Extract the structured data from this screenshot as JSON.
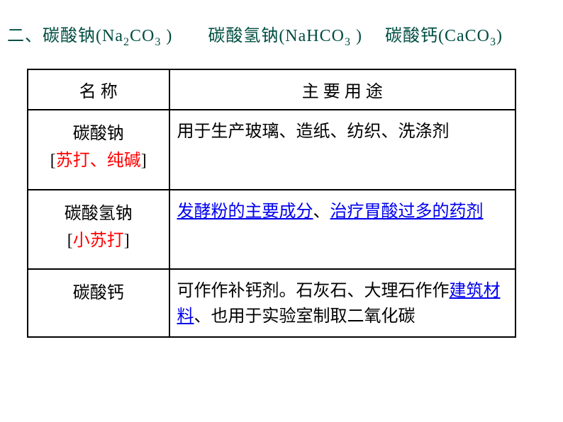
{
  "title": {
    "prefix": "二、碳酸钠(Na",
    "sub1": "2",
    "co": "CO",
    "sub2": "3",
    "sep1": " )　　碳酸氢钠(NaHCO",
    "sub3": "3",
    "sep2": " )　 碳酸钙(CaCO",
    "sub4": "3",
    "suffix": ")"
  },
  "headers": {
    "name": "名  称",
    "use": "主  要  用  途"
  },
  "rows": {
    "r1": {
      "name_main": "碳酸钠",
      "name_b_open": "[",
      "name_alias": "苏打、纯碱",
      "name_b_close": "]",
      "use": "用于生产玻璃、造纸、纺织、洗涤剂"
    },
    "r2": {
      "name_main": "碳酸氢钠",
      "name_b_open": "[",
      "name_alias": "小苏打",
      "name_b_close": "]",
      "use_link1": "发酵粉的主要成分",
      "use_sep": "、",
      "use_link2": "治疗胃酸过多的药剂"
    },
    "r3": {
      "name_main": "碳酸钙",
      "use_pre": "可作作补钙剂。石灰石、大理石作作",
      "use_link": "建筑材料",
      "use_post": "、也用于实验室制取二氧化碳"
    }
  },
  "colors": {
    "title_color": "#004e42",
    "alias_color": "#ff0000",
    "link_color": "#0000ee",
    "border_color": "#000000",
    "background": "#ffffff"
  },
  "typography": {
    "title_fontsize": 24,
    "cell_fontsize": 24,
    "sub_fontsize": 16,
    "font_family": "SimSun"
  },
  "table": {
    "col1_width": 200,
    "col2_width": 490,
    "border_width": 2
  }
}
